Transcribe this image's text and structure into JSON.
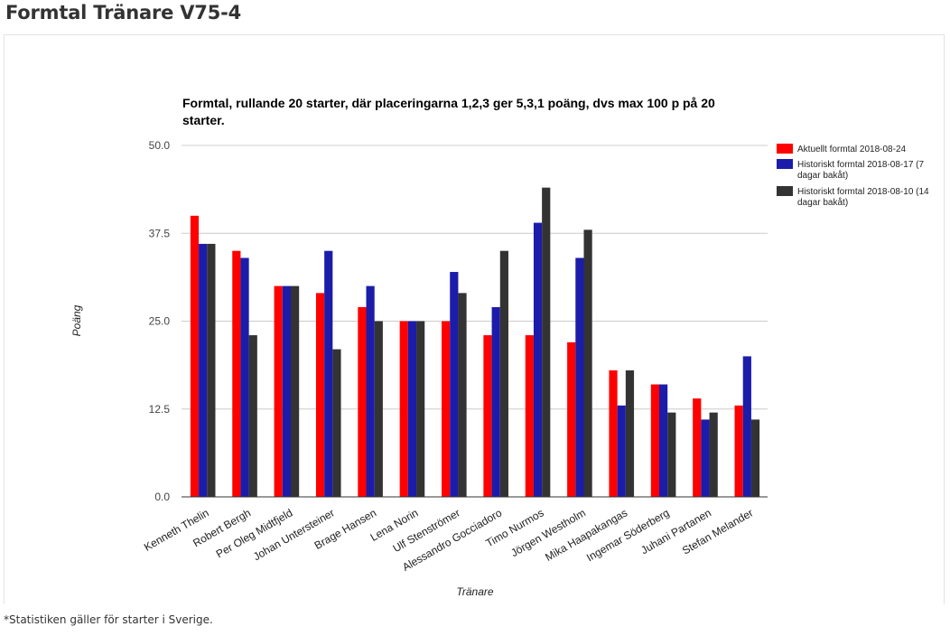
{
  "page": {
    "heading": "Formtal Tränare V75-4",
    "footnote": "*Statistiken gäller för starter i Sverige."
  },
  "chart_data": {
    "type": "bar",
    "title_lines": [
      "Formtal, rullande 20 starter, där placeringarna 1,2,3 ger 5,3,1 poäng, dvs max 100 p på 20",
      "starter."
    ],
    "xlabel": "Tränare",
    "ylabel": "Poäng",
    "ylim": [
      0,
      50
    ],
    "yticks": [
      "0.0",
      "12.5",
      "25.0",
      "37.5",
      "50.0"
    ],
    "grid": true,
    "legend_position": "right",
    "categories": [
      "Kenneth Thelin",
      "Robert Bergh",
      "Per Oleg Midtfjeld",
      "Johan Untersteiner",
      "Brage Hansen",
      "Lena Norin",
      "Ulf Stenströmer",
      "Alessandro Gocciadoro",
      "Timo Nurmos",
      "Jörgen Westholm",
      "Mika Haapakangas",
      "Ingemar Söderberg",
      "Juhani Partanen",
      "Stefan Melander"
    ],
    "series": [
      {
        "name_lines": [
          "Aktuellt formtal 2018-08-24"
        ],
        "color": "#ff0000",
        "values": [
          40,
          35,
          30,
          29,
          27,
          25,
          25,
          23,
          23,
          22,
          18,
          16,
          14,
          13
        ]
      },
      {
        "name_lines": [
          "Historiskt formtal 2018-08-17 (7",
          "dagar bakåt)"
        ],
        "color": "#1c1caa",
        "values": [
          36,
          34,
          30,
          35,
          30,
          25,
          32,
          27,
          39,
          34,
          13,
          16,
          11,
          20
        ]
      },
      {
        "name_lines": [
          "Historiskt formtal 2018-08-10 (14",
          "dagar bakåt)"
        ],
        "color": "#333333",
        "values": [
          36,
          23,
          30,
          21,
          25,
          25,
          29,
          35,
          44,
          38,
          18,
          12,
          12,
          11
        ]
      }
    ]
  }
}
